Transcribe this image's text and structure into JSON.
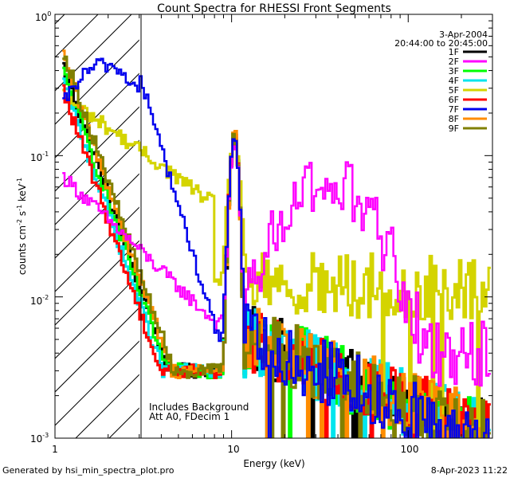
{
  "chart_data": {
    "type": "line",
    "title": "Count Spectra for RHESSI Front Segments",
    "xlabel": "Energy (keV)",
    "ylabel_base": "counts cm",
    "ylabel_exp1": "-2",
    "ylabel_mid": " s",
    "ylabel_exp2": "-1",
    "ylabel_end": " keV",
    "ylabel_exp3": "-1",
    "xscale": "log",
    "yscale": "log",
    "xlim": [
      1,
      300
    ],
    "ylim": [
      0.001,
      1.0
    ],
    "x_tick_labels": [
      "1",
      "10",
      "100"
    ],
    "y_tick_labels": [
      {
        "base": "10",
        "exp": "-3"
      },
      {
        "base": "10",
        "exp": "-2"
      },
      {
        "base": "10",
        "exp": "-1"
      },
      {
        "base": "10",
        "exp": "0"
      }
    ],
    "date": "3-Apr-2004",
    "time_range": "20:44:00 to 20:45:00",
    "annotation_lines": [
      "Includes Background",
      "Att A0, FDecim 1"
    ],
    "footer_left": "Generated by hsi_min_spectra_plot.pro",
    "footer_right": "8-Apr-2023 11:22",
    "hatched_region_keV": [
      1,
      3
    ],
    "series": [
      {
        "name": "1F",
        "color": "#000000"
      },
      {
        "name": "2F",
        "color": "#ff00ff"
      },
      {
        "name": "3F",
        "color": "#00ff00"
      },
      {
        "name": "4F",
        "color": "#00e5ee"
      },
      {
        "name": "5F",
        "color": "#d4d400"
      },
      {
        "name": "6F",
        "color": "#ff0000"
      },
      {
        "name": "7F",
        "color": "#0000ee"
      },
      {
        "name": "8F",
        "color": "#ff8c00"
      },
      {
        "name": "9F",
        "color": "#808000"
      }
    ]
  }
}
